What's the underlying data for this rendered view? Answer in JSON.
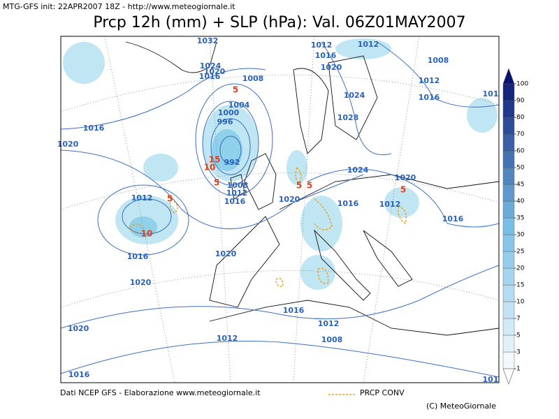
{
  "header": {
    "init": "MTG-GFS init: 22APR2007 18Z - http://www.meteogiornale.it",
    "title": "Prcp 12h (mm) + SLP (hPa): Val. 06Z01MAY2007"
  },
  "map": {
    "isobar_labels": [
      "1032",
      "1024",
      "1020",
      "1016",
      "1008",
      "1004",
      "1000",
      "996",
      "992",
      "1008",
      "1012",
      "1016",
      "1016",
      "1020",
      "1012",
      "1016",
      "1020",
      "1020",
      "1020",
      "1016",
      "1012",
      "1020",
      "1016",
      "1024",
      "1028",
      "1024",
      "1020",
      "1016",
      "1012",
      "1012",
      "1008",
      "1012",
      "1016",
      "101",
      "1016",
      "1012",
      "1008",
      "1012",
      "1020",
      "1016",
      "101"
    ],
    "precip_labels": [
      "5",
      "15",
      "10",
      "5",
      "5",
      "10",
      "5",
      "5",
      "5"
    ]
  },
  "colorbar": {
    "ticks": [
      1,
      3,
      5,
      7,
      10,
      15,
      20,
      25,
      30,
      35,
      40,
      45,
      50,
      60,
      70,
      80,
      90,
      100
    ]
  },
  "footer": {
    "source": "Dati NCEP GFS - Elaborazione www.meteogiornale.it",
    "legend": "PRCP CONV",
    "copyright": "(C) MeteoGiornale"
  }
}
